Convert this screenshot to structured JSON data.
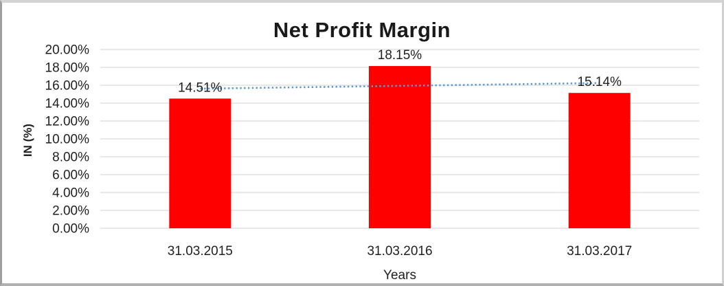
{
  "chart_data": {
    "type": "bar",
    "title": "Net Profit Margin",
    "categories": [
      "31.03.2015",
      "31.03.2016",
      "31.03.2017"
    ],
    "values": [
      14.51,
      18.15,
      15.14
    ],
    "data_labels": [
      "14.51%",
      "18.15%",
      "15.14%"
    ],
    "xlabel": "Years",
    "ylabel": "IN (%)",
    "ylim": [
      0,
      20
    ],
    "ytick_step": 2,
    "ytick_decimals": 2,
    "ytick_suffix": "%",
    "grid": "horizontal",
    "legend": "none",
    "bar_color": "#FF0000",
    "gridline_color": "#D9D9D9",
    "label_color": "#1f1f1f",
    "title_color": "#1a1a1a",
    "trendline": {
      "type": "linear",
      "style": "dotted",
      "color": "#5B9BD5"
    }
  }
}
